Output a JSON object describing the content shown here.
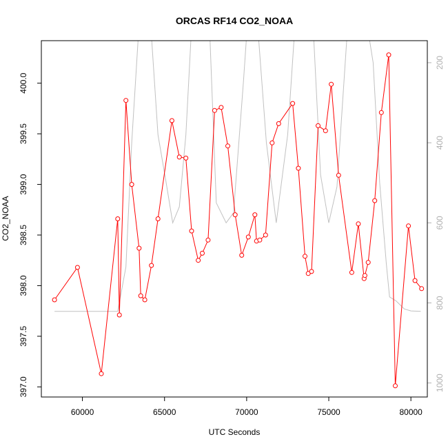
{
  "chart_data": {
    "type": "line",
    "title": "ORCAS RF14 CO2_NOAA",
    "xlabel": "UTC Seconds",
    "ylabel": "CO2_NOAA",
    "xlim": [
      57500,
      81000
    ],
    "ylim": [
      396.9,
      400.42
    ],
    "y2lim": [
      1035,
      145
    ],
    "x_ticks": [
      60000,
      65000,
      70000,
      75000,
      80000
    ],
    "y_ticks": [
      397.0,
      397.5,
      398.0,
      398.5,
      399.0,
      399.5,
      400.0
    ],
    "y2_ticks": [
      200,
      400,
      600,
      800,
      1000
    ],
    "grid": false,
    "series": [
      {
        "color": "#ff0000",
        "axis": "left",
        "style": "line+open-circles",
        "x": [
          58300,
          59700,
          61150,
          62150,
          62250,
          62650,
          63000,
          63450,
          63550,
          63800,
          64200,
          64600,
          65450,
          65900,
          66300,
          66650,
          67050,
          67300,
          67650,
          68050,
          68450,
          68850,
          69300,
          69700,
          70100,
          70500,
          70600,
          70800,
          71150,
          71550,
          71950,
          72800,
          73150,
          73550,
          73750,
          73950,
          74350,
          74800,
          75150,
          75600,
          76400,
          76800,
          77150,
          77200,
          77400,
          77800,
          78200,
          78650,
          79050,
          79850,
          80250,
          80650
        ],
        "y": [
          397.86,
          398.18,
          397.13,
          398.66,
          397.71,
          399.83,
          399.0,
          398.37,
          397.9,
          397.86,
          398.2,
          398.66,
          399.63,
          399.27,
          399.26,
          398.54,
          398.25,
          398.32,
          398.45,
          399.73,
          399.76,
          399.38,
          398.7,
          398.3,
          398.48,
          398.7,
          398.44,
          398.45,
          398.5,
          399.41,
          399.6,
          399.8,
          399.16,
          398.29,
          398.12,
          398.14,
          399.58,
          399.53,
          399.99,
          399.09,
          398.13,
          398.61,
          398.07,
          398.1,
          398.23,
          398.84,
          399.71,
          400.28,
          397.01,
          398.59,
          398.05,
          397.97
        ]
      },
      {
        "color": "#c0c0c0",
        "axis": "right",
        "style": "line",
        "x": [
          58300,
          59700,
          61150,
          62150,
          62650,
          63000,
          63500,
          64100,
          64600,
          65100,
          65500,
          65900,
          66300,
          66700,
          67050,
          67700,
          68150,
          68750,
          69200,
          69800,
          70100,
          70600,
          71200,
          71800,
          72500,
          73000,
          73500,
          74000,
          74500,
          75000,
          75500,
          76100,
          76600,
          77200,
          77700,
          78100,
          78500,
          78700,
          79100,
          79600,
          80000,
          80600
        ],
        "y": [
          821,
          821,
          821,
          821,
          710,
          400,
          70,
          70,
          380,
          500,
          600,
          560,
          380,
          70,
          70,
          70,
          550,
          600,
          575,
          250,
          70,
          70,
          400,
          600,
          380,
          70,
          70,
          70,
          480,
          600,
          510,
          140,
          70,
          70,
          200,
          500,
          700,
          785,
          795,
          815,
          820,
          821
        ]
      }
    ]
  }
}
